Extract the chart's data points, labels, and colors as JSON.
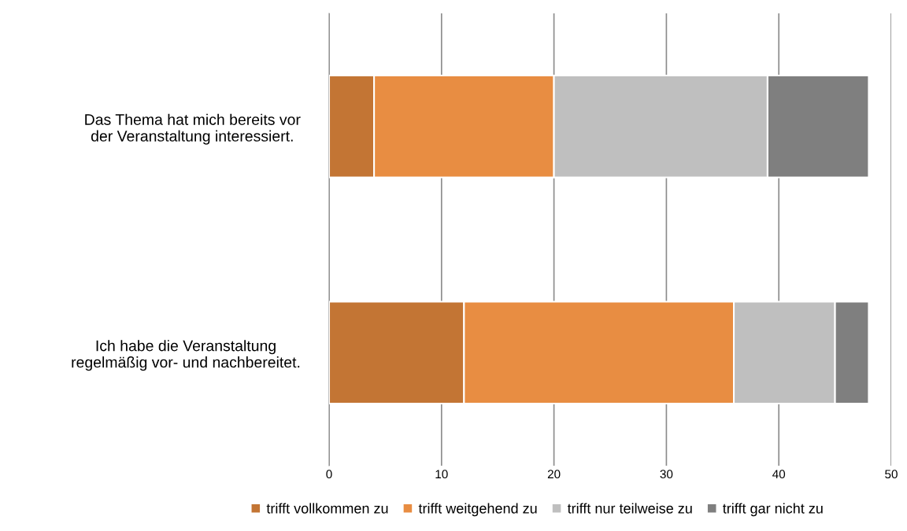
{
  "chart_data": {
    "type": "bar",
    "orientation": "horizontal",
    "stacked": true,
    "categories": [
      "Das Thema hat mich bereits vor\nder Veranstaltung interessiert.",
      "Ich habe die Veranstaltung\nregelmäßig vor- und nachbereitet."
    ],
    "series": [
      {
        "name": "trifft vollkommen zu",
        "color": "#c37534",
        "values": [
          4,
          12
        ]
      },
      {
        "name": "trifft weitgehend zu",
        "color": "#e88d42",
        "values": [
          16,
          24
        ]
      },
      {
        "name": "trifft nur teilweise zu",
        "color": "#bfbfbf",
        "values": [
          19,
          9
        ]
      },
      {
        "name": "trifft gar nicht zu",
        "color": "#7f7f7f",
        "values": [
          9,
          3
        ]
      }
    ],
    "xlim": [
      0,
      50
    ],
    "xticks": [
      0,
      10,
      20,
      30,
      40,
      50
    ],
    "grid": "x",
    "legend": "bottom"
  }
}
